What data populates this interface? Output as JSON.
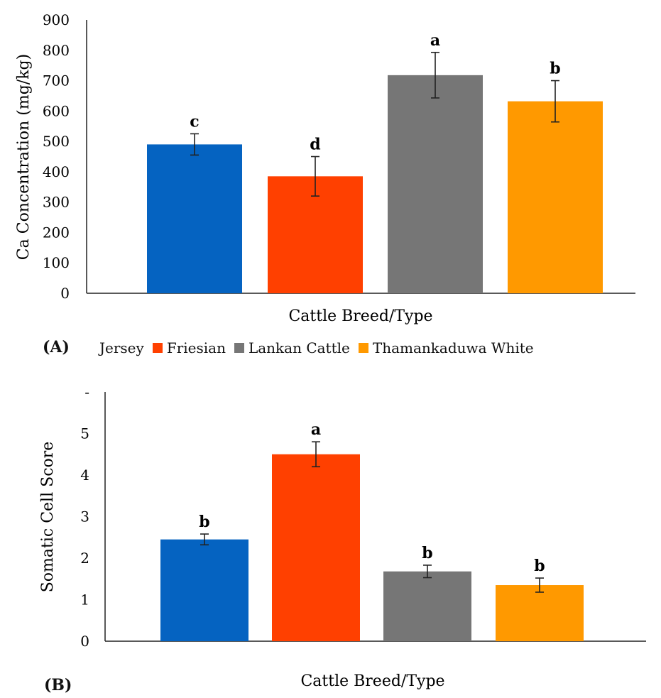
{
  "panels": [
    {
      "label": "(A)"
    },
    {
      "label": "(B)"
    }
  ],
  "legend": {
    "entries": [
      {
        "name": "Jersey",
        "color": "#0563C1",
        "show_swatch": false
      },
      {
        "name": "Friesian",
        "color": "#FF4000",
        "show_swatch": true
      },
      {
        "name": "Lankan Cattle",
        "color": "#767676",
        "show_swatch": true
      },
      {
        "name": "Thamankaduwa White",
        "color": "#FF9900",
        "show_swatch": true
      }
    ]
  },
  "chart_data": [
    {
      "type": "bar",
      "categories": [
        "Jersey",
        "Friesian",
        "Lankan Cattle",
        "Thamankaduwa White"
      ],
      "values": [
        490,
        385,
        718,
        632
      ],
      "errors": [
        35,
        65,
        75,
        68
      ],
      "letters": [
        "c",
        "d",
        "a",
        "b"
      ],
      "colors": [
        "#0563C1",
        "#FF4000",
        "#767676",
        "#FF9900"
      ],
      "xlabel": "Cattle Breed/Type",
      "ylabel": "Ca  Concentration (mg/kg)",
      "ylim": [
        0,
        900
      ],
      "yticks": [
        "0",
        "100",
        "200",
        "300",
        "400",
        "500",
        "600",
        "700",
        "800",
        "900"
      ],
      "grid": false
    },
    {
      "type": "bar",
      "categories": [
        "Jersey",
        "Friesian",
        "Lankan Cattle",
        "Thamankaduwa White"
      ],
      "values": [
        2.45,
        4.5,
        1.68,
        1.35
      ],
      "errors": [
        0.13,
        0.3,
        0.15,
        0.17
      ],
      "letters": [
        "b",
        "a",
        "b",
        "b"
      ],
      "colors": [
        "#0563C1",
        "#FF4000",
        "#767676",
        "#FF9900"
      ],
      "xlabel": "Cattle Breed/Type",
      "ylabel": "Somatic Cell Score",
      "ylim": [
        0,
        6
      ],
      "yticks": [
        "0",
        "1",
        "2",
        "3",
        "4",
        "5",
        "-"
      ],
      "grid": false
    }
  ]
}
